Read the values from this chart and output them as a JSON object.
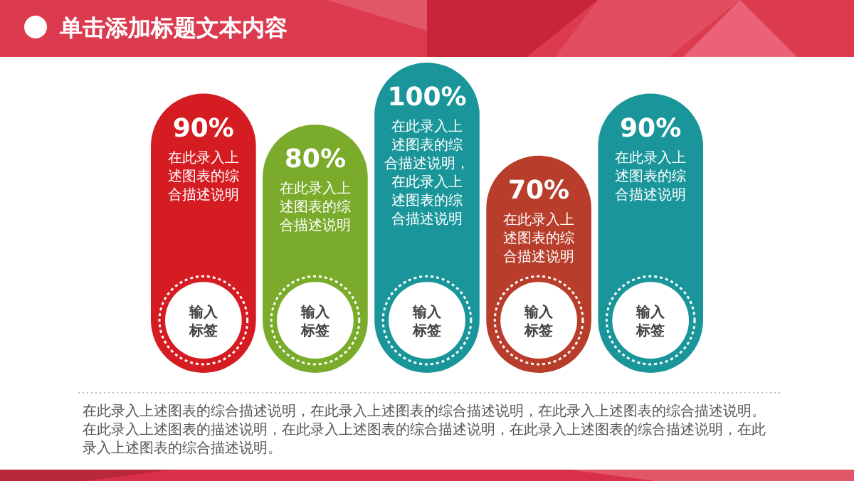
{
  "chart_data": {
    "type": "bar",
    "title": "单击添加标题文本内容",
    "categories": [
      "输入标签",
      "输入标签",
      "输入标签",
      "输入标签",
      "输入标签"
    ],
    "values": [
      90,
      80,
      100,
      70,
      90
    ],
    "value_labels": [
      "90%",
      "80%",
      "100%",
      "70%",
      "90%"
    ],
    "colors": [
      "#d51c22",
      "#7aab2b",
      "#1a969b",
      "#b83d2b",
      "#1a969b"
    ],
    "annotations": [
      "在此录入上述图表的综合描述说明",
      "在此录入上述图表的综合描述说明",
      "在此录入上述图表的综合描述说明，在此录入上述图表的综合描述说明",
      "在此录入上述图表的综合描述说明",
      "在此录入上述图表的综合描述说明",
      "在此录入上述图表的综合描述说明，在此录入上述图表的综合描述说明，在此录入上述图表的综合描述说明。在此录入上述图表的描述说明，在此录入上述图表的综合描述说明，在此录入上述图表的综合描述说明，在此录入上述图表的综合描述说明。"
    ]
  }
}
